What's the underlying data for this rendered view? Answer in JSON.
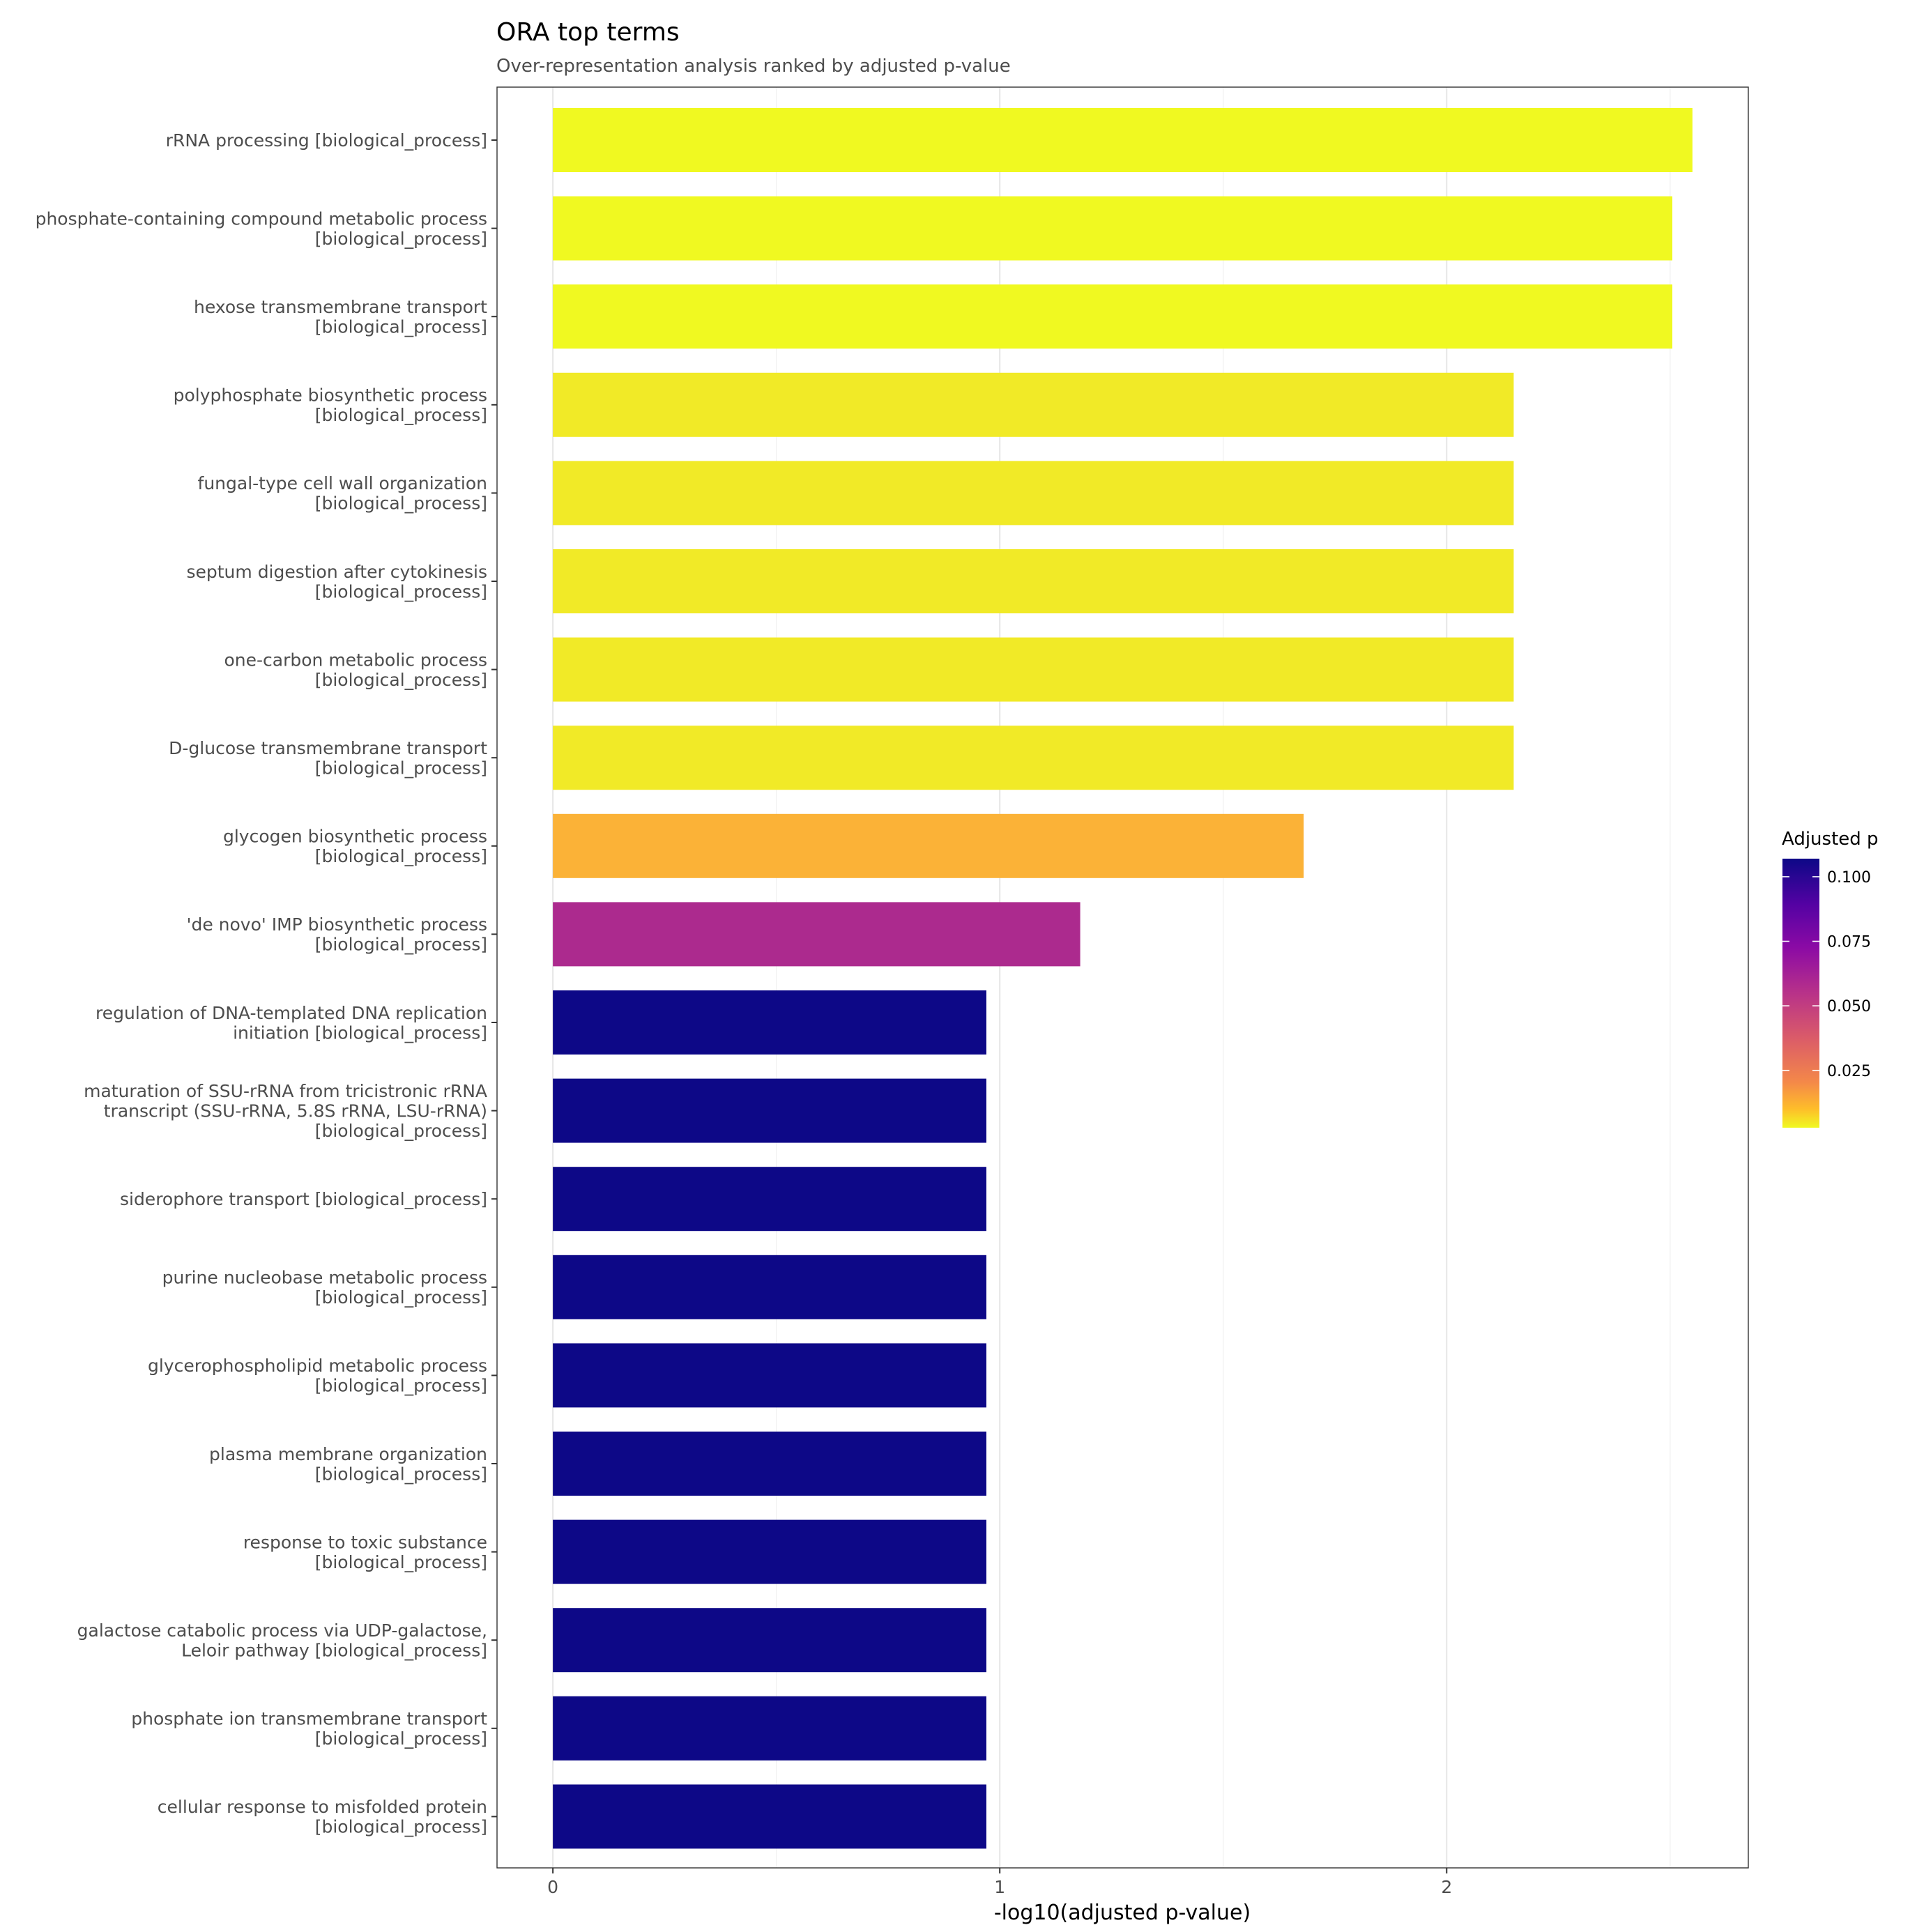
{
  "chart_data": {
    "type": "bar",
    "orientation": "horizontal",
    "title": "ORA top terms",
    "subtitle": "Over-representation analysis ranked by adjusted p-value",
    "xlabel": "-log10(adjusted p-value)",
    "ylabel": "",
    "xlim": [
      -0.125,
      2.675
    ],
    "xticks": [
      0,
      1,
      2
    ],
    "grid": true,
    "categories": [
      [
        "rRNA processing [biological_process]"
      ],
      [
        "phosphate-containing compound metabolic process",
        "[biological_process]"
      ],
      [
        "hexose transmembrane transport",
        "[biological_process]"
      ],
      [
        "polyphosphate biosynthetic process",
        "[biological_process]"
      ],
      [
        "fungal-type cell wall organization",
        "[biological_process]"
      ],
      [
        "septum digestion after cytokinesis",
        "[biological_process]"
      ],
      [
        "one-carbon metabolic process",
        "[biological_process]"
      ],
      [
        "D-glucose transmembrane transport",
        "[biological_process]"
      ],
      [
        "glycogen biosynthetic process",
        "[biological_process]"
      ],
      [
        "'de novo' IMP biosynthetic process",
        "[biological_process]"
      ],
      [
        "regulation of DNA-templated DNA replication",
        "initiation [biological_process]"
      ],
      [
        "maturation of SSU-rRNA from tricistronic rRNA",
        "transcript (SSU-rRNA, 5.8S rRNA, LSU-rRNA)",
        "[biological_process]"
      ],
      [
        "siderophore transport [biological_process]"
      ],
      [
        "purine nucleobase metabolic process",
        "[biological_process]"
      ],
      [
        "glycerophospholipid metabolic process",
        "[biological_process]"
      ],
      [
        "plasma membrane organization",
        "[biological_process]"
      ],
      [
        "response to toxic substance",
        "[biological_process]"
      ],
      [
        "galactose catabolic process via UDP-galactose,",
        "Leloir pathway [biological_process]"
      ],
      [
        "phosphate ion transmembrane transport",
        "[biological_process]"
      ],
      [
        "cellular response to misfolded protein",
        "[biological_process]"
      ]
    ],
    "values": [
      2.55,
      2.505,
      2.505,
      2.15,
      2.15,
      2.15,
      2.15,
      2.15,
      1.68,
      1.18,
      0.97,
      0.97,
      0.97,
      0.97,
      0.97,
      0.97,
      0.97,
      0.97,
      0.97,
      0.97
    ],
    "bar_colors": [
      "#f0f921",
      "#f0f921",
      "#f0f921",
      "#f1ea27",
      "#f1ea27",
      "#f1ea27",
      "#f1ea27",
      "#f1ea27",
      "#fbb237",
      "#ac2a8e",
      "#0d0887",
      "#0d0887",
      "#0d0887",
      "#0d0887",
      "#0d0887",
      "#0d0887",
      "#0d0887",
      "#0d0887",
      "#0d0887",
      "#0d0887"
    ],
    "legend": {
      "title": "Adjusted p",
      "position": "right",
      "ticks": [
        "0.100",
        "0.075",
        "0.050",
        "0.025"
      ],
      "tick_values": [
        0.1,
        0.075,
        0.05,
        0.025
      ],
      "range": [
        0.0028,
        0.107
      ],
      "colormap": "plasma"
    }
  }
}
